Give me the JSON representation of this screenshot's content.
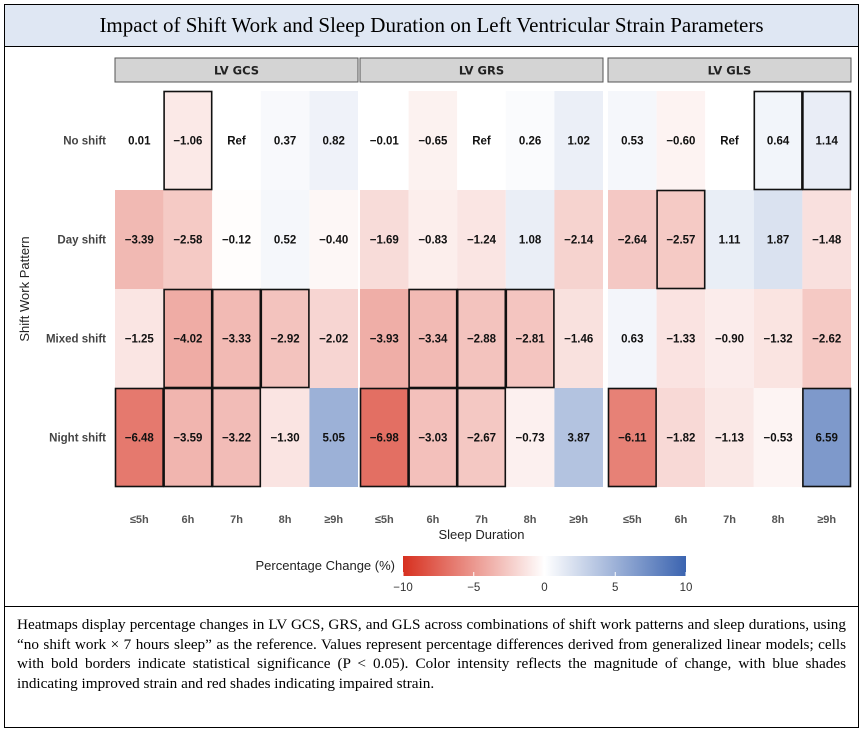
{
  "figure": {
    "title": "Impact of Shift Work and Sleep Duration on Left Ventricular Strain Parameters",
    "caption": "Heatmaps display percentage changes in LV GCS, GRS, and GLS across combinations of shift work patterns and sleep durations, using “no shift work × 7 hours sleep” as the reference. Values represent percentage differences derived from generalized linear models; cells with bold borders indicate statistical significance (P < 0.05). Color intensity reflects the magnitude of change, with blue shades indicating improved strain and red shades indicating impaired strain."
  },
  "chart_data": {
    "type": "heatmap",
    "xlabel": "Sleep Duration",
    "ylabel": "Shift Work Pattern",
    "x_categories": [
      "≤5h",
      "6h",
      "7h",
      "8h",
      "≥9h"
    ],
    "y_categories": [
      "No shift",
      "Day shift",
      "Mixed shift",
      "Night shift"
    ],
    "legend": {
      "title": "Percentage Change (%)",
      "min": -10,
      "max": 10,
      "ticks": [
        "−10",
        "−5",
        "0",
        "5",
        "10"
      ],
      "low_color": "#d7301f",
      "mid_color": "#ffffff",
      "high_color": "#3b64b0"
    },
    "reference_label": "Ref",
    "facets": [
      {
        "name": "LV GCS",
        "values": [
          [
            0.01,
            -1.06,
            null,
            0.37,
            0.82
          ],
          [
            -3.39,
            -2.58,
            -0.12,
            0.52,
            -0.4
          ],
          [
            -1.25,
            -4.02,
            -3.33,
            -2.92,
            -2.02
          ],
          [
            -6.48,
            -3.59,
            -3.22,
            -1.3,
            5.05
          ]
        ],
        "labels": [
          [
            "0.01",
            "−1.06",
            "Ref",
            "0.37",
            "0.82"
          ],
          [
            "−3.39",
            "−2.58",
            "−0.12",
            "0.52",
            "−0.40"
          ],
          [
            "−1.25",
            "−4.02",
            "−3.33",
            "−2.92",
            "−2.02"
          ],
          [
            "−6.48",
            "−3.59",
            "−3.22",
            "−1.30",
            "5.05"
          ]
        ],
        "significant": [
          [
            false,
            true,
            false,
            false,
            false
          ],
          [
            false,
            false,
            false,
            false,
            false
          ],
          [
            false,
            true,
            true,
            true,
            false
          ],
          [
            true,
            true,
            true,
            false,
            false
          ]
        ]
      },
      {
        "name": "LV GRS",
        "values": [
          [
            -0.01,
            -0.65,
            null,
            0.26,
            1.02
          ],
          [
            -1.69,
            -0.83,
            -1.24,
            1.08,
            -2.14
          ],
          [
            -3.93,
            -3.34,
            -2.88,
            -2.81,
            -1.46
          ],
          [
            -6.98,
            -3.03,
            -2.67,
            -0.73,
            3.87
          ]
        ],
        "labels": [
          [
            "−0.01",
            "−0.65",
            "Ref",
            "0.26",
            "1.02"
          ],
          [
            "−1.69",
            "−0.83",
            "−1.24",
            "1.08",
            "−2.14"
          ],
          [
            "−3.93",
            "−3.34",
            "−2.88",
            "−2.81",
            "−1.46"
          ],
          [
            "−6.98",
            "−3.03",
            "−2.67",
            "−0.73",
            "3.87"
          ]
        ],
        "significant": [
          [
            false,
            false,
            false,
            false,
            false
          ],
          [
            false,
            false,
            false,
            false,
            false
          ],
          [
            false,
            true,
            true,
            true,
            false
          ],
          [
            true,
            true,
            true,
            false,
            false
          ]
        ]
      },
      {
        "name": "LV GLS",
        "values": [
          [
            0.53,
            -0.6,
            null,
            0.64,
            1.14
          ],
          [
            -2.64,
            -2.57,
            1.11,
            1.87,
            -1.48
          ],
          [
            0.63,
            -1.33,
            -0.9,
            -1.32,
            -2.62
          ],
          [
            -6.11,
            -1.82,
            -1.13,
            -0.53,
            6.59
          ]
        ],
        "labels": [
          [
            "0.53",
            "−0.60",
            "Ref",
            "0.64",
            "1.14"
          ],
          [
            "−2.64",
            "−2.57",
            "1.11",
            "1.87",
            "−1.48"
          ],
          [
            "0.63",
            "−1.33",
            "−0.90",
            "−1.32",
            "−2.62"
          ],
          [
            "−6.11",
            "−1.82",
            "−1.13",
            "−0.53",
            "6.59"
          ]
        ],
        "significant": [
          [
            false,
            false,
            false,
            true,
            true
          ],
          [
            false,
            true,
            false,
            false,
            false
          ],
          [
            false,
            false,
            false,
            false,
            false
          ],
          [
            true,
            false,
            false,
            false,
            true
          ]
        ]
      }
    ]
  }
}
